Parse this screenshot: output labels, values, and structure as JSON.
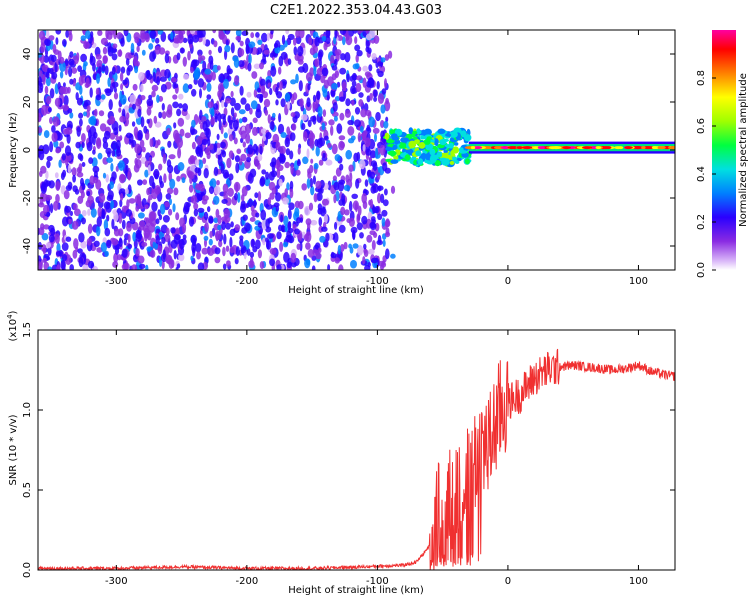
{
  "figure": {
    "title": "C2E1.2022.353.04.43.G03"
  },
  "chart_data": [
    {
      "type": "heatmap",
      "xlabel": "Height of straight line (km)",
      "ylabel": "Frequency (Hz)",
      "xlim": [
        -360,
        128
      ],
      "ylim": [
        -50,
        50
      ],
      "xticks": [
        -300,
        -200,
        -100,
        0,
        100
      ],
      "yticks": [
        -40,
        -20,
        0,
        20,
        40
      ],
      "colorbar": {
        "label": "Normalized spectral amplitude",
        "range": [
          0,
          1
        ],
        "ticks": [
          0.0,
          0.2,
          0.4,
          0.6,
          0.8
        ],
        "colormap": [
          "#ffffff",
          "#d8b4f8",
          "#8a2be2",
          "#2a00ff",
          "#00b4ff",
          "#00e0c0",
          "#00ff00",
          "#c0ff00",
          "#ffff00",
          "#ff8000",
          "#ff0000",
          "#ff00a0"
        ]
      },
      "regions": [
        {
          "x_range": [
            -360,
            -92
          ],
          "freq_range": [
            -50,
            50
          ],
          "description_level": 0.15
        },
        {
          "x_range": [
            -95,
            -30
          ],
          "freq_range": [
            -6,
            8
          ],
          "description_level": 0.5
        },
        {
          "x_range": [
            -30,
            128
          ],
          "freq_range": [
            -1,
            3
          ],
          "description_level": 0.85
        }
      ],
      "grid": false
    },
    {
      "type": "line",
      "xlabel": "Height of straight line (km)",
      "ylabel": "SNR (10 * v/v)",
      "y_multiplier": "(x10",
      "y_multiplier_exp": "4",
      "y_multiplier_close": ")",
      "xlim": [
        -360,
        128
      ],
      "ylim": [
        0,
        1.5
      ],
      "xticks": [
        -300,
        -200,
        -100,
        0,
        100
      ],
      "yticks": [
        "0.0",
        "0.5",
        "1.0",
        "1.5"
      ],
      "series": [
        {
          "color": "#f03030",
          "x": [
            -360,
            -300,
            -250,
            -200,
            -150,
            -110,
            -80,
            -70,
            -60,
            -55,
            -50,
            -45,
            -40,
            -35,
            -30,
            -25,
            -20,
            -15,
            -10,
            -5,
            0,
            10,
            20,
            30,
            40,
            50,
            60,
            70,
            80,
            90,
            100,
            110,
            120,
            128
          ],
          "y": [
            0.01,
            0.01,
            0.02,
            0.01,
            0.01,
            0.02,
            0.03,
            0.05,
            0.15,
            0.35,
            0.3,
            0.45,
            0.5,
            0.6,
            0.55,
            0.7,
            0.8,
            0.75,
            0.9,
            1.0,
            1.05,
            1.1,
            1.2,
            1.25,
            1.27,
            1.28,
            1.27,
            1.26,
            1.25,
            1.26,
            1.28,
            1.24,
            1.22,
            1.21
          ]
        }
      ],
      "grid": false
    }
  ]
}
